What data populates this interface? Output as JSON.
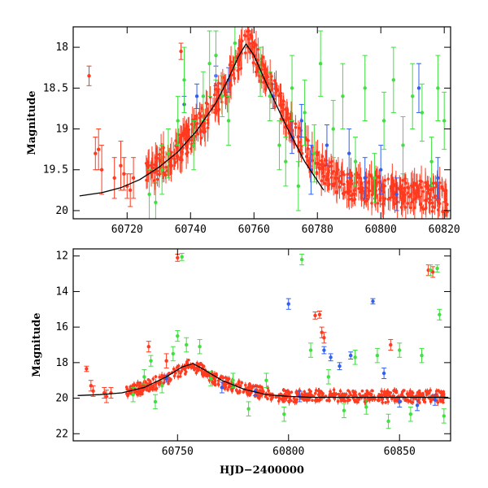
{
  "chart_data": [
    {
      "type": "scatter",
      "title": "",
      "xlabel": "",
      "ylabel": "Magnitude",
      "xlim": [
        60703,
        60822
      ],
      "ylim": [
        20.1,
        17.75
      ],
      "y_inverted": true,
      "x_ticks": [
        60720,
        60740,
        60760,
        60780,
        60800,
        60820
      ],
      "y_ticks": [
        18,
        18.5,
        19,
        19.5,
        20
      ],
      "grid": false,
      "error_bars": true,
      "model_curve": {
        "color": "#000000",
        "x": [
          60705,
          60712,
          60718,
          60724,
          60730,
          60736,
          60742,
          60748,
          60752,
          60755,
          60757.5,
          60760,
          60764,
          60770,
          60776,
          60782
        ],
        "y": [
          19.82,
          19.78,
          19.72,
          19.62,
          19.47,
          19.28,
          19.02,
          18.68,
          18.38,
          18.12,
          17.96,
          18.1,
          18.45,
          18.95,
          19.4,
          19.75
        ]
      },
      "series": [
        {
          "color": "#ff3a1f",
          "points": [
            [
              60708,
              18.35,
              0.12
            ],
            [
              60710,
              19.3,
              0.2
            ],
            [
              60711,
              19.25,
              0.25
            ],
            [
              60712,
              19.5,
              0.3
            ],
            [
              60716,
              19.6,
              0.25
            ],
            [
              60718,
              19.45,
              0.3
            ],
            [
              60719,
              19.55,
              0.2
            ],
            [
              60720,
              19.7,
              0.15
            ],
            [
              60721,
              19.75,
              0.2
            ],
            [
              60722,
              19.6,
              0.25
            ],
            [
              60737,
              18.05,
              0.1
            ]
          ],
          "trend": {
            "x": [
              60726,
              60730,
              60735,
              60740,
              60745,
              60750,
              60754,
              60757,
              60758,
              60760,
              60765,
              60770,
              60775,
              60780,
              60790,
              60800,
              60810,
              60821
            ],
            "y": [
              19.6,
              19.45,
              19.3,
              19.1,
              18.85,
              18.55,
              18.25,
              18.0,
              17.95,
              18.1,
              18.45,
              18.85,
              19.2,
              19.45,
              19.7,
              19.75,
              19.8,
              19.85
            ]
          }
        },
        {
          "color": "#3060f0",
          "points": [
            [
              60738,
              18.7,
              0.1
            ],
            [
              60742,
              18.6,
              0.15
            ],
            [
              60748,
              18.35,
              0.12
            ],
            [
              60752,
              18.4,
              0.15
            ],
            [
              60766,
              18.6,
              0.15
            ],
            [
              60772,
              19.1,
              0.2
            ],
            [
              60775,
              18.9,
              0.2
            ],
            [
              60778,
              19.5,
              0.3
            ],
            [
              60783,
              19.2,
              0.25
            ],
            [
              60790,
              19.3,
              0.3
            ],
            [
              60795,
              19.6,
              0.25
            ],
            [
              60800,
              19.5,
              0.3
            ],
            [
              60805,
              19.8,
              0.2
            ],
            [
              60812,
              18.5,
              0.3
            ],
            [
              60818,
              19.6,
              0.25
            ]
          ]
        },
        {
          "color": "#40e040",
          "points": [
            [
              60727,
              19.8,
              0.3
            ],
            [
              60729,
              19.9,
              0.25
            ],
            [
              60731,
              19.5,
              0.3
            ],
            [
              60733,
              19.3,
              0.3
            ],
            [
              60736,
              18.9,
              0.3
            ],
            [
              60738,
              18.4,
              0.4
            ],
            [
              60741,
              19.2,
              0.3
            ],
            [
              60744,
              18.6,
              0.3
            ],
            [
              60746,
              18.2,
              0.4
            ],
            [
              60748,
              18.1,
              0.3
            ],
            [
              60750,
              18.6,
              0.25
            ],
            [
              60752,
              18.9,
              0.3
            ],
            [
              60754,
              17.95,
              0.3
            ],
            [
              60762,
              18.3,
              0.3
            ],
            [
              60765,
              18.6,
              0.3
            ],
            [
              60768,
              19.2,
              0.3
            ],
            [
              60770,
              19.4,
              0.3
            ],
            [
              60772,
              18.5,
              0.4
            ],
            [
              60774,
              19.7,
              0.3
            ],
            [
              60776,
              18.8,
              0.4
            ],
            [
              60779,
              19.3,
              0.35
            ],
            [
              60781,
              18.2,
              0.4
            ],
            [
              60785,
              19.0,
              0.35
            ],
            [
              60788,
              18.6,
              0.4
            ],
            [
              60792,
              19.4,
              0.3
            ],
            [
              60795,
              18.5,
              0.4
            ],
            [
              60798,
              19.6,
              0.3
            ],
            [
              60801,
              18.9,
              0.35
            ],
            [
              60804,
              18.4,
              0.4
            ],
            [
              60807,
              19.2,
              0.35
            ],
            [
              60810,
              18.6,
              0.4
            ],
            [
              60813,
              18.8,
              0.35
            ],
            [
              60816,
              19.4,
              0.3
            ],
            [
              60818,
              18.5,
              0.4
            ],
            [
              60820,
              18.9,
              0.35
            ]
          ]
        }
      ]
    },
    {
      "type": "scatter",
      "title": "",
      "xlabel": "HJD−2400000",
      "ylabel": "Magnitude",
      "xlim": [
        60703,
        60873
      ],
      "ylim": [
        22.4,
        11.6
      ],
      "y_inverted": true,
      "x_ticks": [
        60750,
        60800,
        60850
      ],
      "y_ticks": [
        12,
        14,
        16,
        18,
        20,
        22
      ],
      "grid": false,
      "error_bars": true,
      "model_curve": {
        "color": "#000000",
        "x": [
          60705,
          60715,
          60725,
          60735,
          60745,
          60752,
          60757,
          60762,
          60770,
          60780,
          60790,
          60800,
          60810,
          60830,
          60850,
          60872
        ],
        "y": [
          19.85,
          19.8,
          19.7,
          19.4,
          18.8,
          18.25,
          18.05,
          18.4,
          19.0,
          19.5,
          19.8,
          19.9,
          19.95,
          19.95,
          19.95,
          19.95
        ]
      },
      "series": [
        {
          "color": "#ff3a1f",
          "points": [
            [
              60709,
              18.35,
              0.15
            ],
            [
              60711,
              19.3,
              0.3
            ],
            [
              60712,
              19.6,
              0.3
            ],
            [
              60717,
              19.7,
              0.3
            ],
            [
              60718,
              19.9,
              0.35
            ],
            [
              60720,
              19.7,
              0.3
            ],
            [
              60737,
              17.1,
              0.3
            ],
            [
              60745,
              17.9,
              0.4
            ],
            [
              60750,
              12.1,
              0.2
            ],
            [
              60812,
              15.35,
              0.2
            ],
            [
              60814,
              15.3,
              0.2
            ],
            [
              60815,
              16.3,
              0.3
            ],
            [
              60816,
              16.6,
              0.3
            ],
            [
              60846,
              17.0,
              0.3
            ],
            [
              60863,
              12.8,
              0.3
            ],
            [
              60865,
              12.9,
              0.3
            ]
          ],
          "trend": {
            "x": [
              60727,
              60735,
              60745,
              60752,
              60756,
              60760,
              60768,
              60778,
              60790,
              60800,
              60806,
              60812,
              60825,
              60840,
              60855,
              60870
            ],
            "y": [
              19.6,
              19.4,
              18.9,
              18.4,
              18.1,
              18.35,
              19.0,
              19.4,
              19.75,
              19.9,
              19.9,
              19.85,
              19.85,
              19.9,
              19.9,
              19.9
            ]
          }
        },
        {
          "color": "#3060f0",
          "points": [
            [
              60745,
              18.9,
              0.2
            ],
            [
              60770,
              19.4,
              0.3
            ],
            [
              60785,
              19.6,
              0.25
            ],
            [
              60800,
              14.7,
              0.3
            ],
            [
              60805,
              19.9,
              0.3
            ],
            [
              60816,
              17.3,
              0.2
            ],
            [
              60819,
              17.7,
              0.2
            ],
            [
              60823,
              18.2,
              0.2
            ],
            [
              60828,
              17.6,
              0.2
            ],
            [
              60838,
              14.55,
              0.15
            ],
            [
              60843,
              18.6,
              0.3
            ],
            [
              60850,
              20.2,
              0.3
            ],
            [
              60858,
              20.4,
              0.3
            ],
            [
              60866,
              20.1,
              0.3
            ]
          ]
        },
        {
          "color": "#40e040",
          "points": [
            [
              60730,
              19.8,
              0.4
            ],
            [
              60735,
              18.8,
              0.4
            ],
            [
              60738,
              17.9,
              0.3
            ],
            [
              60740,
              20.2,
              0.4
            ],
            [
              60743,
              19.3,
              0.4
            ],
            [
              60748,
              17.5,
              0.4
            ],
            [
              60750,
              16.5,
              0.3
            ],
            [
              60752,
              12.05,
              0.2
            ],
            [
              60754,
              17.0,
              0.4
            ],
            [
              60760,
              17.1,
              0.4
            ],
            [
              60765,
              18.9,
              0.4
            ],
            [
              60775,
              19.0,
              0.4
            ],
            [
              60782,
              20.6,
              0.4
            ],
            [
              60790,
              19.0,
              0.4
            ],
            [
              60798,
              20.9,
              0.4
            ],
            [
              60806,
              12.2,
              0.3
            ],
            [
              60810,
              17.3,
              0.4
            ],
            [
              60818,
              18.8,
              0.4
            ],
            [
              60825,
              20.7,
              0.4
            ],
            [
              60830,
              17.7,
              0.4
            ],
            [
              60835,
              20.5,
              0.4
            ],
            [
              60840,
              17.6,
              0.4
            ],
            [
              60845,
              21.3,
              0.4
            ],
            [
              60850,
              17.3,
              0.4
            ],
            [
              60855,
              20.9,
              0.4
            ],
            [
              60860,
              17.6,
              0.4
            ],
            [
              60864,
              12.8,
              0.3
            ],
            [
              60867,
              12.7,
              0.2
            ],
            [
              60868,
              15.3,
              0.3
            ],
            [
              60870,
              21.0,
              0.4
            ]
          ]
        }
      ]
    }
  ]
}
